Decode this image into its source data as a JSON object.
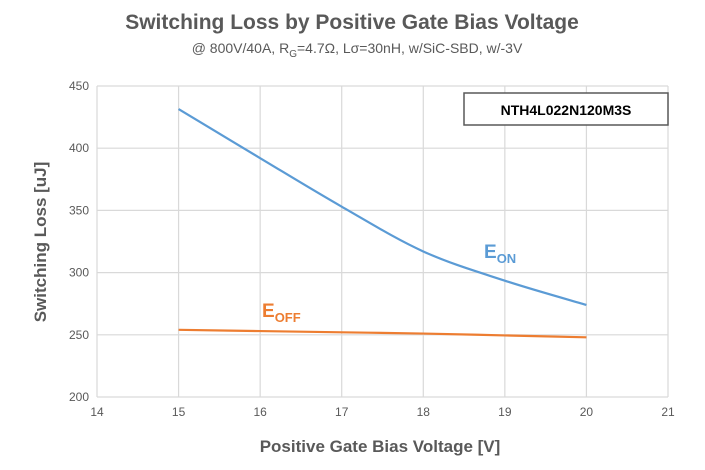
{
  "chart_data": {
    "type": "line",
    "title": "Switching Loss by Positive Gate Bias Voltage",
    "subtitle": {
      "prefix": "@ 800V/40A, R",
      "sub": "G",
      "suffix": "=4.7Ω, Lσ=30nH, w/SiC-SBD, w/-3V"
    },
    "xlabel": "Positive Gate Bias Voltage [V]",
    "ylabel": "Switching Loss [uJ]",
    "xlim": [
      14,
      21
    ],
    "ylim": [
      200,
      450
    ],
    "xticks": [
      14,
      15,
      16,
      17,
      18,
      19,
      20,
      21
    ],
    "yticks": [
      200,
      250,
      300,
      350,
      400,
      450
    ],
    "grid": true,
    "annotation_box": "NTH4L022N120M3S",
    "x": [
      15,
      16,
      17,
      18,
      19,
      20
    ],
    "series": [
      {
        "name": "E_ON",
        "label_main": "E",
        "label_sub": "ON",
        "color": "#5B9BD5",
        "values": [
          431.5,
          392,
          353,
          317,
          293.5,
          274
        ]
      },
      {
        "name": "E_OFF",
        "label_main": "E",
        "label_sub": "OFF",
        "color": "#ED7D31",
        "values": [
          254,
          253,
          252,
          251,
          249.5,
          248
        ]
      }
    ]
  }
}
